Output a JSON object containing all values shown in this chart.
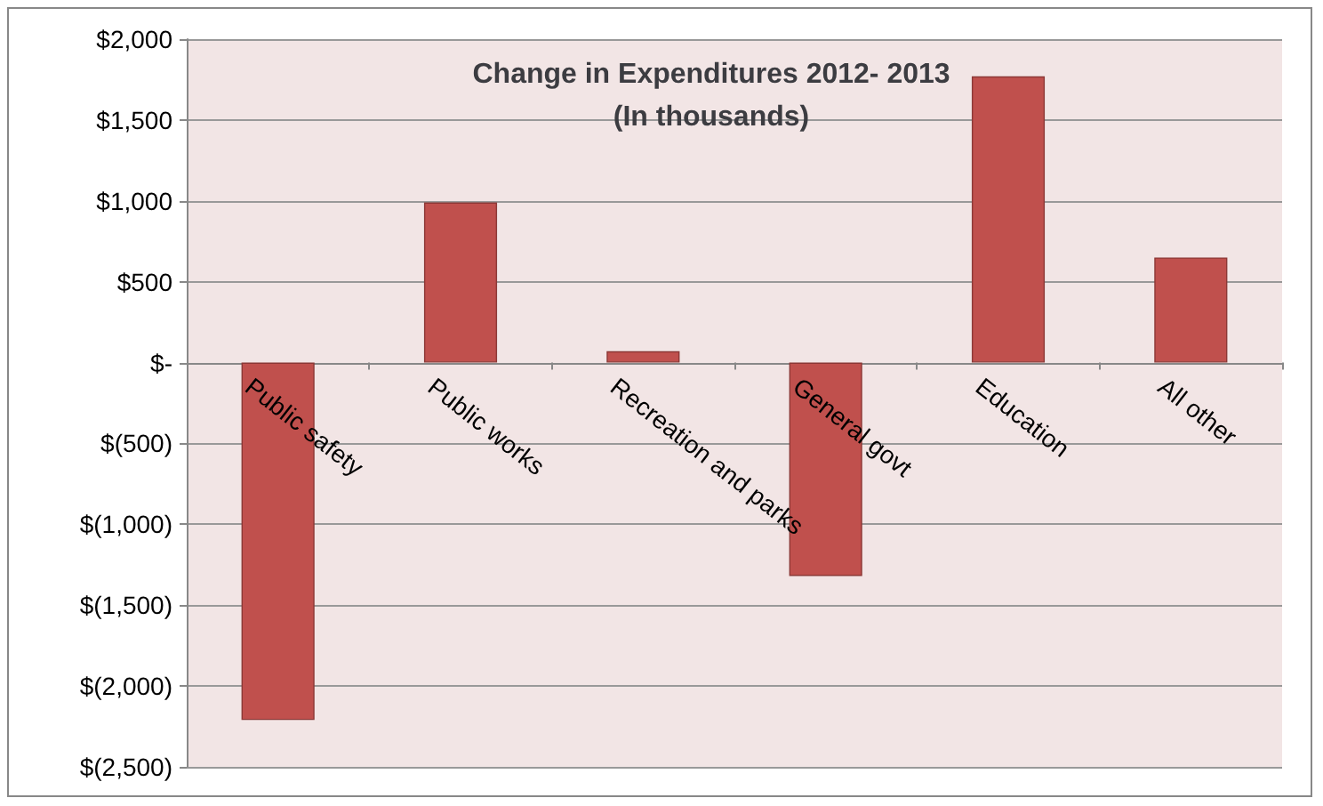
{
  "chart_data": {
    "type": "bar",
    "title": "Change in Expenditures 2012- 2013\n(In thousands)",
    "categories": [
      "Public safety",
      "Public works",
      "Recreation and parks",
      "General govt",
      "Education",
      "All other"
    ],
    "values": [
      -2210,
      990,
      70,
      -1320,
      1770,
      650
    ],
    "color": "#c0504d",
    "ylim": [
      -2500,
      2000
    ],
    "yticks": [
      {
        "value": -2500,
        "label": "$(2,500)"
      },
      {
        "value": -2000,
        "label": "$(2,000)"
      },
      {
        "value": -1500,
        "label": "$(1,500)"
      },
      {
        "value": -1000,
        "label": "$(1,000)"
      },
      {
        "value": -500,
        "label": "$(500)"
      },
      {
        "value": 0,
        "label": "$-"
      },
      {
        "value": 500,
        "label": "$500"
      },
      {
        "value": 1000,
        "label": "$1,000"
      },
      {
        "value": 1500,
        "label": "$1,500"
      },
      {
        "value": 2000,
        "label": "$2,000"
      }
    ],
    "grid": "y"
  }
}
